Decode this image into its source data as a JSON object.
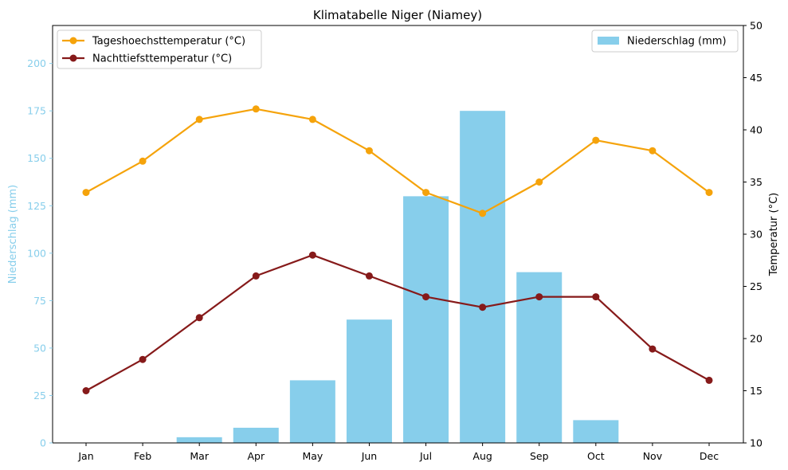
{
  "chart_data": {
    "type": "bar+line",
    "title": "Klimatabelle Niger (Niamey)",
    "categories": [
      "Jan",
      "Feb",
      "Mar",
      "Apr",
      "May",
      "Jun",
      "Jul",
      "Aug",
      "Sep",
      "Oct",
      "Nov",
      "Dec"
    ],
    "left_axis": {
      "label": "Niederschlag (mm)",
      "ylim": [
        0,
        220
      ],
      "ticks": [
        0,
        25,
        50,
        75,
        100,
        125,
        150,
        175,
        200
      ],
      "color": "#87ceeb"
    },
    "right_axis": {
      "label": "Temperatur (°C)",
      "ylim": [
        10,
        50
      ],
      "ticks": [
        10,
        15,
        20,
        25,
        30,
        35,
        40,
        45,
        50
      ],
      "color": "#000000"
    },
    "bars": {
      "name": "Niederschlag (mm)",
      "axis": "left",
      "color": "#87ceeb",
      "values": [
        0,
        0,
        3,
        8,
        33,
        65,
        130,
        175,
        90,
        12,
        0,
        0
      ]
    },
    "series": [
      {
        "name": "Tageshoechsttemperatur (°C)",
        "axis": "right",
        "color": "#f5a30b",
        "values": [
          34,
          37,
          41,
          42,
          41,
          38,
          34,
          32,
          35,
          39,
          38,
          34
        ]
      },
      {
        "name": "Nachttiefsttemperatur (°C)",
        "axis": "right",
        "color": "#861a1a",
        "values": [
          15,
          18,
          22,
          26,
          28,
          26,
          24,
          23,
          24,
          24,
          19,
          16
        ]
      }
    ],
    "legends": {
      "lines_position": "top-left",
      "bars_position": "top-right"
    },
    "grid": false
  }
}
